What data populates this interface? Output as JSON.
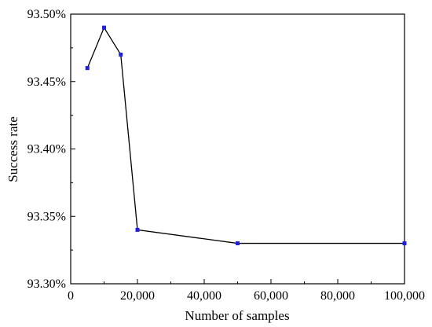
{
  "chart_data": {
    "type": "line",
    "xlabel": "Number of samples",
    "ylabel": "Success rate",
    "xlim": [
      0,
      100000
    ],
    "ylim": [
      93.3,
      93.5
    ],
    "x_ticks": [
      0,
      20000,
      40000,
      60000,
      80000,
      100000
    ],
    "x_tick_labels": [
      "0",
      "20,000",
      "40,000",
      "60,000",
      "80,000",
      "100,000"
    ],
    "y_ticks": [
      93.3,
      93.35,
      93.4,
      93.45,
      93.5
    ],
    "y_tick_labels": [
      "93.30%",
      "93.35%",
      "93.40%",
      "93.45%",
      "93.50%"
    ],
    "grid": false,
    "line_color": "#000000",
    "marker_color": "#1f1fe0",
    "series": [
      {
        "x": [
          5000,
          10000,
          15000,
          20000,
          50000,
          100000
        ],
        "y": [
          93.46,
          93.49,
          93.47,
          93.34,
          93.33,
          93.33
        ]
      }
    ]
  }
}
